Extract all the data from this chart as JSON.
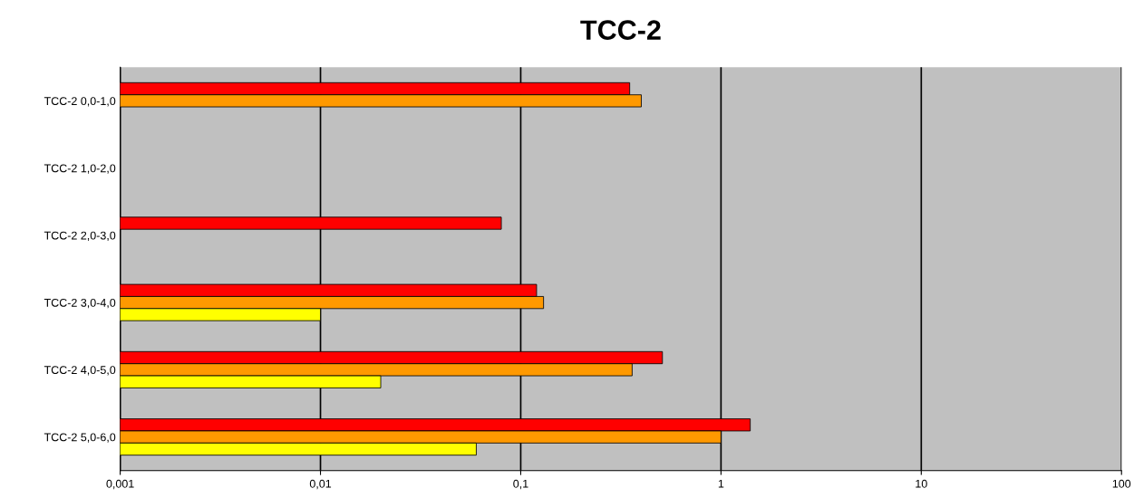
{
  "chart_data": {
    "type": "bar",
    "orientation": "horizontal",
    "title": "TCC-2",
    "categories": [
      "TCC-2 0,0-1,0",
      "TCC-2 1,0-2,0",
      "TCC-2 2,0-3,0",
      "TCC-2 3,0-4,0",
      "TCC-2 4,0-5,0",
      "TCC-2 5,0-6,0"
    ],
    "series": [
      {
        "color": "#ff0000",
        "values": [
          0.35,
          null,
          0.08,
          0.12,
          0.51,
          1.4
        ]
      },
      {
        "color": "#ff9900",
        "values": [
          0.4,
          null,
          null,
          0.13,
          0.36,
          1.0
        ]
      },
      {
        "color": "#ffff00",
        "values": [
          null,
          null,
          null,
          0.01,
          0.02,
          0.06
        ]
      }
    ],
    "log": "x",
    "xlim": [
      0.001,
      100
    ],
    "xticks": [
      {
        "value": 0.001,
        "label": "0,001"
      },
      {
        "value": 0.01,
        "label": "0,01"
      },
      {
        "value": 0.1,
        "label": "0,1"
      },
      {
        "value": 1,
        "label": "1"
      },
      {
        "value": 10,
        "label": "10"
      },
      {
        "value": 100,
        "label": "100"
      }
    ],
    "grid": "x",
    "legend": false
  }
}
